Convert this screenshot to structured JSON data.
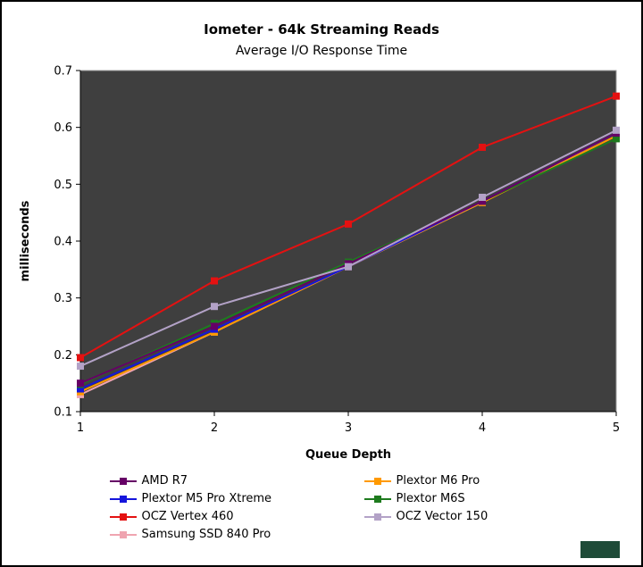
{
  "header": {
    "title": "Iometer - 64k Streaming Reads",
    "subtitle": "Average I/O Response Time"
  },
  "chart_data": {
    "type": "line",
    "title": "Iometer - 64k Streaming Reads",
    "subtitle": "Average I/O Response Time",
    "xlabel": "Queue Depth",
    "ylabel": "milliseconds",
    "x": [
      1,
      2,
      3,
      4,
      5
    ],
    "ylim": [
      0.1,
      0.7
    ],
    "ytick_step": 0.1,
    "grid": false,
    "marker": "square",
    "plot_bg": "#3f3f3f",
    "legend_position": "bottom-two-columns",
    "series": [
      {
        "name": "AMD R7",
        "color": "#660066",
        "values": [
          0.15,
          0.25,
          0.36,
          0.47,
          0.59
        ]
      },
      {
        "name": "Plextor M5 Pro Xtreme",
        "color": "#1515dc",
        "values": [
          0.14,
          0.245,
          0.355,
          0.47,
          0.59
        ]
      },
      {
        "name": "OCZ Vertex 460",
        "color": "#e41111",
        "values": [
          0.195,
          0.33,
          0.43,
          0.565,
          0.655
        ]
      },
      {
        "name": "Samsung SSD 840 Pro",
        "color": "#efa4b0",
        "values": [
          0.13,
          0.24,
          0.355,
          0.468,
          0.59
        ]
      },
      {
        "name": "Plextor M6 Pro",
        "color": "#ff9900",
        "values": [
          0.135,
          0.24,
          0.355,
          0.468,
          0.585
        ]
      },
      {
        "name": "Plextor M6S",
        "color": "#1e7b1e",
        "values": [
          0.148,
          0.255,
          0.363,
          0.47,
          0.58
        ]
      },
      {
        "name": "OCZ Vector 150",
        "color": "#b3a2c7",
        "values": [
          0.18,
          0.285,
          0.355,
          0.477,
          0.595
        ]
      }
    ]
  },
  "footer": {
    "badge_color": "#1e4b38"
  }
}
